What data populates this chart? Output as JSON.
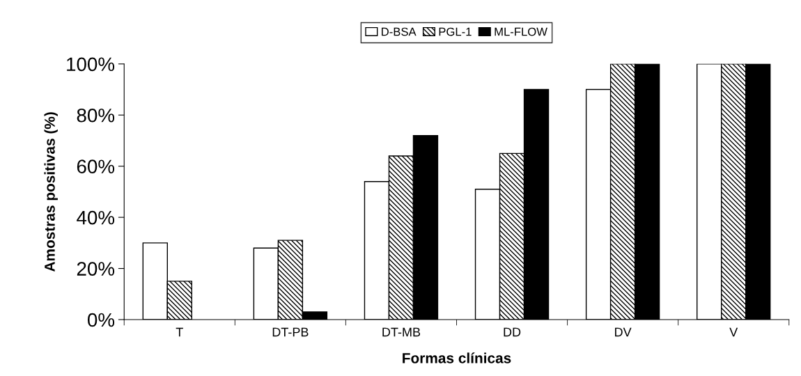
{
  "chart_data": {
    "type": "bar",
    "xlabel": "Formas clínicas",
    "ylabel": "Amostras positivas (%)",
    "categories": [
      "T",
      "DT-PB",
      "DT-MB",
      "DD",
      "DV",
      "V"
    ],
    "series": [
      {
        "name": "D-BSA",
        "color": "#ffffff",
        "values": [
          30,
          28,
          54,
          51,
          90,
          100
        ]
      },
      {
        "name": "PGL-1",
        "color": "#000000",
        "values": [
          15,
          31,
          64,
          65,
          100,
          100
        ]
      },
      {
        "name": "ML-FLOW",
        "color": "#000000",
        "values": [
          null,
          3,
          72,
          90,
          100,
          100
        ]
      }
    ],
    "ylim": [
      0,
      100
    ],
    "yticks": [
      {
        "value": 0,
        "label": "0%"
      },
      {
        "value": 20,
        "label": "20%"
      },
      {
        "value": 40,
        "label": "40%"
      },
      {
        "value": 60,
        "label": "60%"
      },
      {
        "value": 80,
        "label": "80%"
      },
      {
        "value": 100,
        "label": "100%"
      }
    ],
    "grid": false,
    "legend": "top"
  }
}
